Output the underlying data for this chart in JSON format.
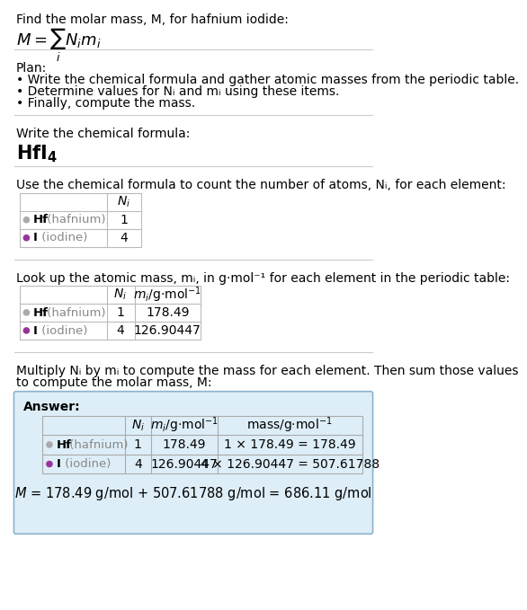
{
  "bg_color": "#ffffff",
  "answer_bg_color": "#deeef8",
  "answer_border_color": "#8ab4cc",
  "hf_color": "#aaaaaa",
  "i_color": "#993399",
  "table_line_color": "#bbbbbb",
  "separator_color": "#cccccc",
  "header_text": "Find the molar mass, M, for hafnium iodide:",
  "plan_title": "Plan:",
  "plan_lines": [
    "• Write the chemical formula and gather atomic masses from the periodic table.",
    "• Determine values for Nᵢ and mᵢ using these items.",
    "• Finally, compute the mass."
  ],
  "formula_label": "Write the chemical formula:",
  "formula": "HfI₄",
  "table1_label": "Use the chemical formula to count the number of atoms, Nᵢ, for each element:",
  "table2_label": "Look up the atomic mass, mᵢ, in g·mol⁻¹ for each element in the periodic table:",
  "answer_intro": "Multiply Nᵢ by mᵢ to compute the mass for each element. Then sum those values\nto compute the molar mass, M:",
  "answer_label": "Answer:",
  "final_line": "M = 178.49 g/mol + 507.61788 g/mol = 686.11 g/mol",
  "elements": [
    {
      "symbol": "Hf",
      "name": "hafnium",
      "Ni": "1",
      "mi": "178.49",
      "mass_expr": "1 × 178.49 = 178.49"
    },
    {
      "symbol": "I",
      "name": "iodine",
      "Ni": "4",
      "mi": "126.90447",
      "mass_expr": "4 × 126.90447 = 507.61788"
    }
  ]
}
